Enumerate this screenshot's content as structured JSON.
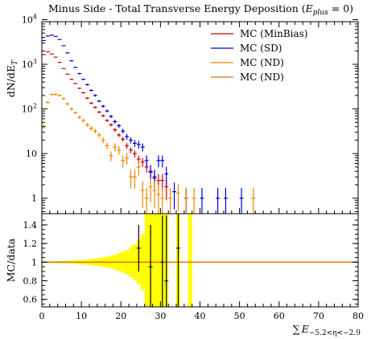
{
  "chart_data": {
    "type": "scatter",
    "title_main": "Minus Side - Total Transverse Energy Deposition (",
    "title_math_var": "E",
    "title_math_sub": "plus",
    "title_math_rest": " = 0)",
    "xlabel_sum": "∑",
    "xlabel_var": "E",
    "xlabel_sub": "−5.2<η<−2.9",
    "ylabel_top": "dN/dE",
    "ylabel_top_sub": "T",
    "ylabel_bottom": "MC/data",
    "xlim": [
      0,
      80
    ],
    "top_scale": "log",
    "top_ylim": [
      0.45,
      9000
    ],
    "bottom_ylim": [
      0.52,
      1.52
    ],
    "x_ticks": [
      "0",
      "10",
      "20",
      "30",
      "40",
      "50",
      "60",
      "70",
      "80"
    ],
    "top_y_ticks": [
      {
        "value": 1,
        "label": "1"
      },
      {
        "value": 10,
        "label": "10"
      },
      {
        "value": 100,
        "label": "10",
        "exp": "2"
      },
      {
        "value": 1000,
        "label": "10",
        "exp": "3"
      },
      {
        "value": 10000,
        "label": "10",
        "exp": "4"
      }
    ],
    "bottom_y_ticks": [
      "0.6",
      "0.8",
      "1",
      "1.2",
      "1.4"
    ],
    "colors": {
      "minbias": "#cc0000",
      "sd": "#0000dd",
      "nd": "#ee8800",
      "nd2": "#e07000",
      "band": "#ffff00",
      "ratio_line": "#e07000"
    },
    "legend_position": "top-right",
    "series": [
      {
        "name": "MC (MinBias)",
        "color": "#cc0000",
        "x": [
          0.5,
          1.5,
          2.5,
          3.5,
          4.5,
          5.5,
          6.5,
          7.5,
          8.5,
          9.5,
          10.5,
          11.5,
          12.5,
          13.5,
          14.5,
          15.5,
          16.5,
          17.5,
          18.5,
          19.5,
          20.5,
          21.5,
          22.5,
          23.5,
          24.5,
          25.5,
          26.5,
          27.5,
          28.5,
          29.5,
          30.5,
          31.5
        ],
        "y": [
          1650,
          1900,
          1700,
          1450,
          1100,
          800,
          600,
          460,
          370,
          290,
          230,
          175,
          135,
          108,
          85,
          70,
          55,
          44,
          34,
          26,
          21,
          15,
          12,
          10,
          7.5,
          6.5,
          5,
          3.8,
          2.8,
          2.5,
          2.5,
          1.8
        ],
        "yerr_rel": [
          0.02,
          0.02,
          0.02,
          0.02,
          0.02,
          0.02,
          0.03,
          0.03,
          0.03,
          0.04,
          0.04,
          0.05,
          0.05,
          0.06,
          0.06,
          0.07,
          0.07,
          0.08,
          0.1,
          0.1,
          0.12,
          0.14,
          0.15,
          0.18,
          0.2,
          0.22,
          0.25,
          0.3,
          0.35,
          0.4,
          0.4,
          0.5
        ]
      },
      {
        "name": "MC (SD)",
        "color": "#0000dd",
        "x": [
          0.5,
          1.5,
          2.5,
          3.5,
          4.5,
          5.5,
          6.5,
          7.5,
          8.5,
          9.5,
          10.5,
          11.5,
          12.5,
          13.5,
          14.5,
          15.5,
          16.5,
          17.5,
          18.5,
          19.5,
          20.5,
          21.5,
          22.5,
          23.5,
          24.5,
          25.5,
          26.5,
          27.5,
          28.5,
          29.5,
          30.5,
          31.5,
          33.5,
          36.5,
          40.5,
          44.5,
          46.5,
          50.5
        ],
        "y": [
          3400,
          4300,
          4500,
          4200,
          3600,
          2600,
          1800,
          1200,
          850,
          620,
          460,
          350,
          260,
          200,
          150,
          115,
          90,
          68,
          52,
          42,
          32,
          24,
          20,
          17,
          16,
          14,
          7,
          4,
          3,
          7,
          7,
          3.5,
          1.4,
          1,
          1,
          1,
          1,
          1
        ],
        "yerr_rel": [
          0.02,
          0.02,
          0.02,
          0.02,
          0.02,
          0.02,
          0.03,
          0.03,
          0.03,
          0.04,
          0.04,
          0.05,
          0.05,
          0.06,
          0.06,
          0.07,
          0.07,
          0.08,
          0.1,
          0.1,
          0.12,
          0.14,
          0.15,
          0.18,
          0.2,
          0.2,
          0.3,
          0.4,
          0.45,
          0.3,
          0.3,
          0.45,
          0.6,
          0.7,
          0.7,
          0.7,
          0.7,
          0.7
        ]
      },
      {
        "name": "MC (ND)",
        "color": "#ee8800",
        "x": [
          0.5,
          1.5,
          2.5,
          3.5,
          4.5,
          5.5,
          6.5,
          7.5,
          8.5,
          9.5,
          10.5,
          11.5,
          12.5,
          13.5,
          14.5,
          15.5,
          16.5,
          17.5,
          18.5,
          19.5,
          20.5,
          21.5,
          22.5,
          23.5,
          24.5,
          25.5,
          26.5,
          27.5,
          28.5,
          29.5,
          30.5,
          32.5,
          34.5,
          36.5,
          38.5,
          53.5
        ],
        "y": [
          40,
          140,
          210,
          210,
          200,
          170,
          130,
          100,
          82,
          65,
          55,
          44,
          37,
          32,
          26,
          20,
          15,
          9,
          14,
          12,
          7,
          8,
          3,
          3,
          5,
          1.5,
          1,
          1.8,
          1.5,
          1.2,
          1,
          1,
          1.3,
          1,
          1,
          1
        ],
        "yerr_rel": [
          0.1,
          0.06,
          0.05,
          0.05,
          0.05,
          0.06,
          0.07,
          0.07,
          0.08,
          0.09,
          0.1,
          0.1,
          0.12,
          0.12,
          0.13,
          0.15,
          0.17,
          0.25,
          0.2,
          0.22,
          0.3,
          0.3,
          0.45,
          0.45,
          0.35,
          0.6,
          0.7,
          0.55,
          0.6,
          0.65,
          0.7,
          0.7,
          0.6,
          0.7,
          0.7,
          0.7
        ]
      },
      {
        "name": "MC (ND)",
        "color": "#e07000",
        "x": [],
        "y": [],
        "yerr_rel": []
      }
    ],
    "ratio_band": {
      "x_edges": [
        0,
        1,
        2,
        3,
        4,
        5,
        6,
        7,
        8,
        9,
        10,
        11,
        12,
        13,
        14,
        15,
        16,
        17,
        18,
        19,
        20,
        21,
        22,
        23,
        24,
        25,
        26,
        27,
        28,
        29,
        30,
        31,
        32,
        33,
        34,
        35,
        36,
        37,
        38
      ],
      "half_width": [
        0.008,
        0.008,
        0.009,
        0.01,
        0.011,
        0.012,
        0.014,
        0.016,
        0.018,
        0.021,
        0.024,
        0.028,
        0.032,
        0.037,
        0.043,
        0.05,
        0.058,
        0.068,
        0.08,
        0.095,
        0.11,
        0.13,
        0.16,
        0.19,
        0.24,
        0.3,
        0.7,
        0.7,
        0.7,
        0.7,
        0.7,
        0.7,
        0,
        0,
        0.7,
        0,
        0,
        0.7
      ],
      "segments": [
        [
          0,
          26
        ],
        [
          26,
          28
        ],
        [
          28,
          29
        ],
        [
          29,
          31
        ],
        [
          33,
          35
        ],
        [
          37,
          38
        ]
      ]
    },
    "ratio_points": {
      "color": "#0000dd",
      "x": [
        24.5,
        27.5,
        30.5,
        31.5,
        34.5
      ],
      "y": [
        1.15,
        0.95,
        1.0,
        0.8,
        1.15
      ],
      "yerr": [
        0.25,
        0.45,
        0.5,
        0.7,
        0.7
      ]
    },
    "ratio_line_value": 1
  }
}
